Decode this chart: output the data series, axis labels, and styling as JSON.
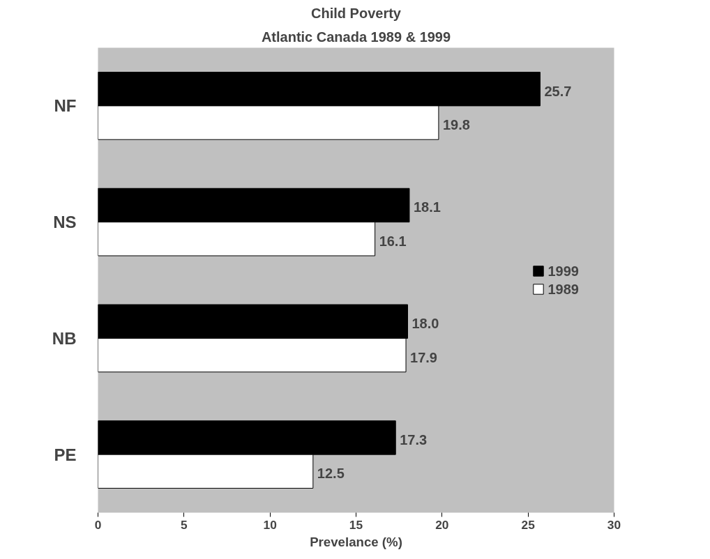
{
  "chart_data": {
    "type": "bar",
    "orientation": "horizontal",
    "title": "Child Poverty",
    "subtitle": "Atlantic Canada 1989 & 1999",
    "xlabel": "Prevelance (%)",
    "categories": [
      "NF",
      "NS",
      "NB",
      "PE"
    ],
    "series": [
      {
        "name": "1999",
        "color": "#000000",
        "values": [
          25.7,
          18.1,
          18.0,
          17.3
        ],
        "value_labels": [
          "25.7",
          "18.1",
          "18.0",
          "17.3"
        ]
      },
      {
        "name": "1989",
        "color": "#ffffff",
        "values": [
          19.8,
          16.1,
          17.9,
          12.5
        ],
        "value_labels": [
          "19.8",
          "16.1",
          "17.9",
          "12.5"
        ]
      }
    ],
    "xlim": [
      0,
      30
    ],
    "xticks": [
      0,
      5,
      10,
      15,
      20,
      25,
      30
    ],
    "grid": false,
    "legend": "right"
  }
}
